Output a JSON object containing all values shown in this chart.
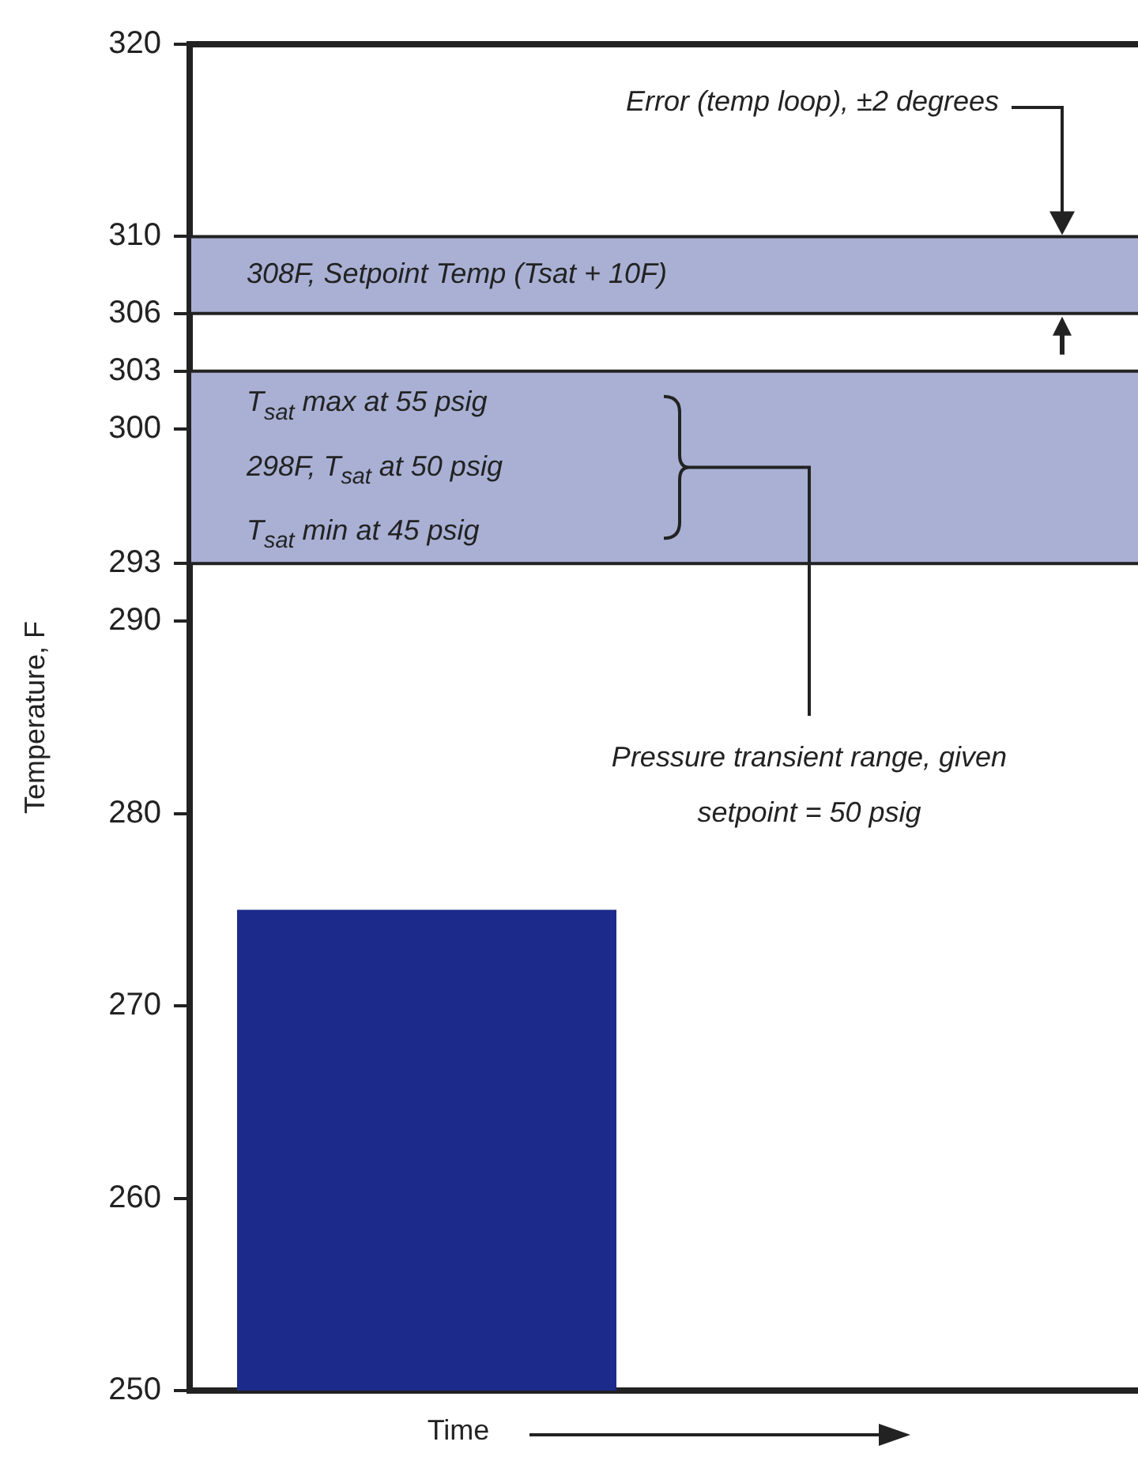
{
  "chart_data": {
    "type": "bar",
    "ylabel": "Temperature, F",
    "xlabel": "Time",
    "categories": [
      null,
      null
    ],
    "series": [
      {
        "color": "#1c2a8c",
        "values": [
          275,
          null
        ]
      }
    ],
    "ylim": [
      250,
      320
    ],
    "yticks": [
      250,
      260,
      270,
      280,
      290,
      293,
      300,
      303,
      306,
      310,
      320
    ],
    "grid": false,
    "bands": [
      {
        "axis": "y",
        "from": 306,
        "to": 310,
        "label": "308F, Setpoint Temp (Tsat + 10F)",
        "color": "#a9b0d4"
      },
      {
        "axis": "y",
        "from": 293,
        "to": 303,
        "label": "T$_{sat}$ max at 55 psig\n298F, T$_{sat}$ at 50 psig\nT$_{sat}$ min at 45 psig",
        "color": "#a9b0d4"
      }
    ],
    "annotations": [
      "Error (temp loop), ±2 degrees",
      "Pressure transient range, given setpoint = 50 psig"
    ]
  }
}
